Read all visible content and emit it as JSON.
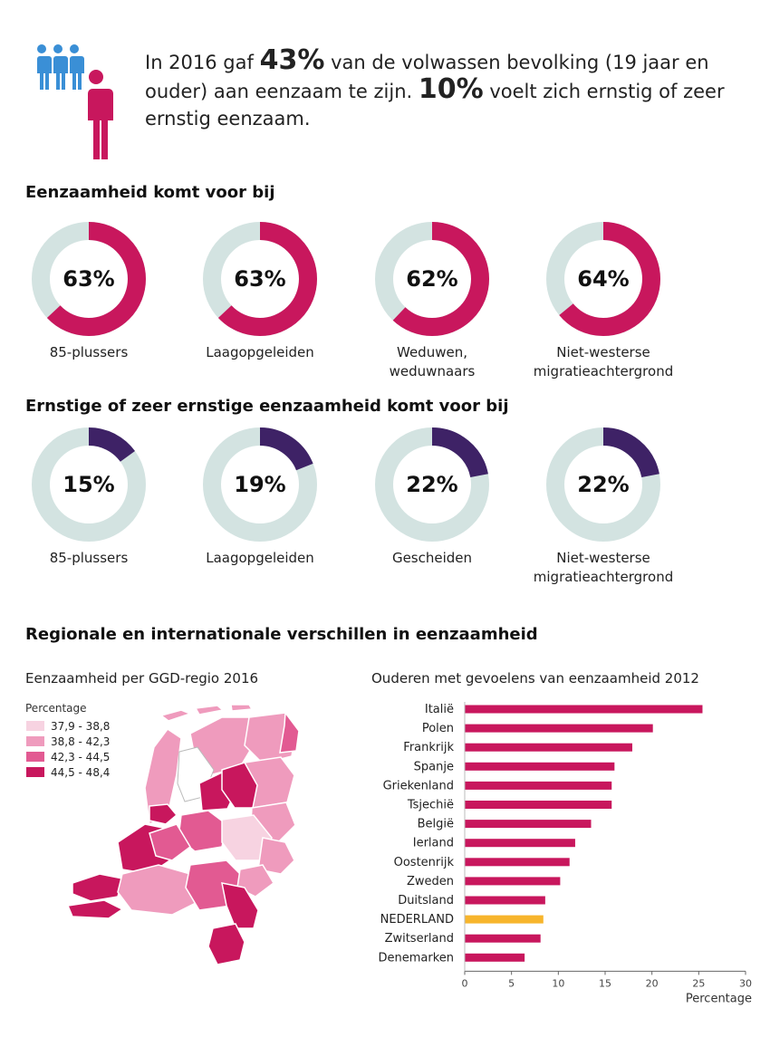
{
  "intro": {
    "parts": [
      "In 2016 gaf ",
      "43%",
      " van de volwassen bevolking (19 jaar en ouder) aan eenzaam te zijn. ",
      "10%",
      " voelt zich ernstig of zeer ernstig eenzaam."
    ],
    "icon_colors": {
      "group": "#3a8fd6",
      "single": "#c8175d"
    }
  },
  "section1": {
    "title": "Eenzaamheid komt voor bij",
    "color": "#c8175d",
    "track": "#d3e3e1",
    "items": [
      {
        "value": 63,
        "display": "63%",
        "label": [
          "85-plussers"
        ]
      },
      {
        "value": 63,
        "display": "63%",
        "label": [
          "Laagopgeleiden"
        ]
      },
      {
        "value": 62,
        "display": "62%",
        "label": [
          "Weduwen,",
          "weduwnaars"
        ]
      },
      {
        "value": 64,
        "display": "64%",
        "label": [
          "Niet-westerse",
          "migratieachtergrond"
        ]
      }
    ]
  },
  "section2": {
    "title": "Ernstige  of zeer ernstige eenzaamheid komt voor bij",
    "color": "#3e2266",
    "track": "#d3e3e1",
    "items": [
      {
        "value": 15,
        "display": "15%",
        "label": [
          "85-plussers"
        ]
      },
      {
        "value": 19,
        "display": "19%",
        "label": [
          "Laagopgeleiden"
        ]
      },
      {
        "value": 22,
        "display": "22%",
        "label": [
          "Gescheiden"
        ]
      },
      {
        "value": 22,
        "display": "22%",
        "label": [
          "Niet-westerse",
          "migratieachtergrond"
        ]
      }
    ]
  },
  "section3": {
    "title": "Regionale en internationale verschillen in eenzaamheid",
    "map_title": "Eenzaamheid per GGD-regio 2016",
    "legend_title": "Percentage",
    "legend": [
      {
        "label": "37,9 - 38,8",
        "color": "#f7d3e1"
      },
      {
        "label": "38,8 - 42,3",
        "color": "#ef9bbd"
      },
      {
        "label": "42,3 - 44,5",
        "color": "#e25a92"
      },
      {
        "label": "44,5 - 48,4",
        "color": "#c8175d"
      }
    ],
    "bar_title": "Ouderen met gevoelens van eenzaamheid 2012"
  },
  "chart_data": [
    {
      "type": "bar",
      "orientation": "horizontal",
      "title": "Ouderen met gevoelens van eenzaamheid 2012",
      "xlabel": "Percentage",
      "ylabel": "",
      "xlim": [
        0,
        30
      ],
      "xticks": [
        0,
        5,
        10,
        15,
        20,
        25,
        30
      ],
      "grid": false,
      "categories": [
        "Italië",
        "Polen",
        "Frankrijk",
        "Spanje",
        "Griekenland",
        "Tsjechië",
        "België",
        "Ierland",
        "Oostenrijk",
        "Zweden",
        "Duitsland",
        "NEDERLAND",
        "Zwitserland",
        "Denemarken"
      ],
      "values": [
        25.4,
        20.1,
        17.9,
        16.0,
        15.7,
        15.7,
        13.5,
        11.8,
        11.2,
        10.2,
        8.6,
        8.4,
        8.1,
        6.4
      ],
      "colors": {
        "default": "#c8175d",
        "highlight": "#f7b52c",
        "highlight_category": "NEDERLAND"
      }
    }
  ]
}
